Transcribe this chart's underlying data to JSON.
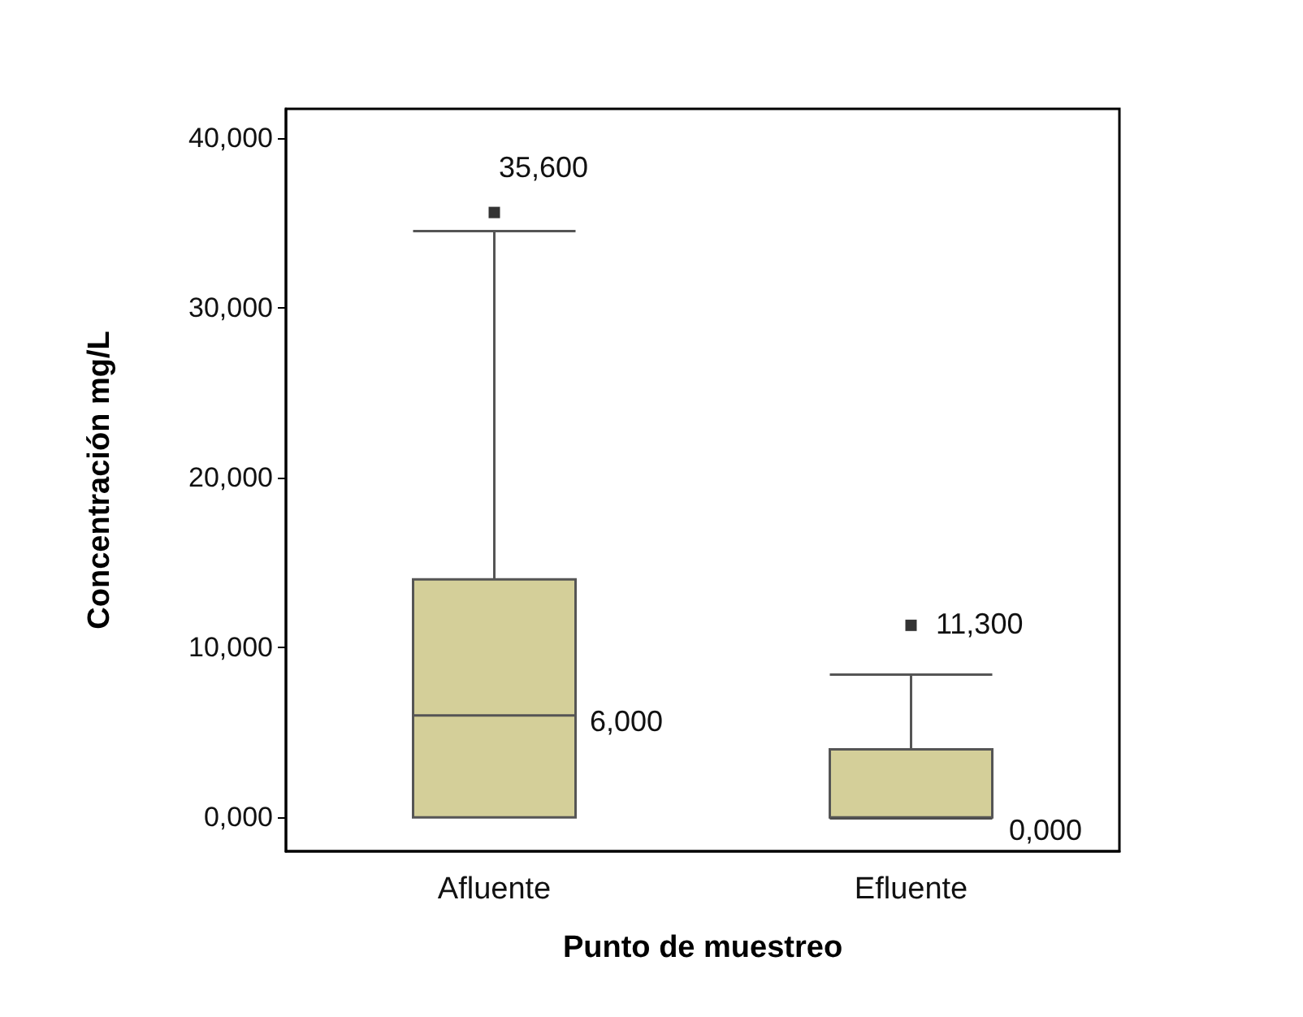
{
  "chart_data": {
    "type": "box",
    "xlabel": "Punto de muestreo",
    "ylabel": "Concentración mg/L",
    "categories": [
      "Afluente",
      "Efluente"
    ],
    "series": [
      {
        "color": "#d4cf99",
        "boxes": [
          {
            "low": 0,
            "q1": 0,
            "median": 6,
            "q3": 14,
            "high": 34.5,
            "outliers": [
              35.6
            ]
          },
          {
            "low": 0,
            "q1": 0,
            "median": 0,
            "q3": 4,
            "high": 8.4,
            "outliers": [
              11.3
            ]
          }
        ]
      }
    ],
    "ylim": [
      -2,
      41.7
    ],
    "yticks": [
      {
        "value": 0,
        "label": "0,000"
      },
      {
        "value": 10,
        "label": "10,000"
      },
      {
        "value": 20,
        "label": "20,000"
      },
      {
        "value": 30,
        "label": "30,000"
      },
      {
        "value": 40,
        "label": "40,000"
      }
    ],
    "annotations": [
      "35,600",
      "6,000",
      "11,300",
      "0,000"
    ],
    "marker": "square"
  }
}
